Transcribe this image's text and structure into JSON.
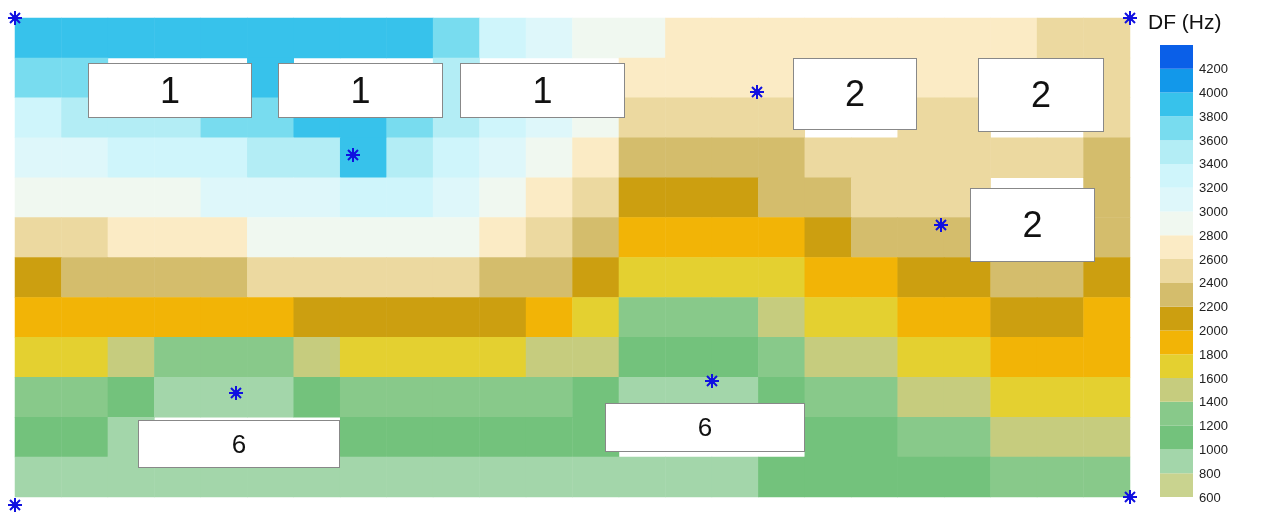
{
  "chart_data": {
    "type": "heatmap",
    "clabel": "DF (Hz)",
    "tick_labels": false,
    "categories": [
      null,
      null,
      null,
      null,
      null,
      null,
      null,
      null,
      null,
      null,
      null,
      null,
      null,
      null,
      null,
      null,
      null,
      null,
      null,
      null,
      null,
      null,
      null,
      null
    ],
    "y_categories": [
      null,
      null,
      null,
      null,
      null,
      null,
      null,
      null,
      null,
      null,
      null,
      null
    ],
    "cells": [
      [
        3900,
        3900,
        3900,
        3900,
        3900,
        3900,
        3900,
        3900,
        3900,
        3700,
        3300,
        3100,
        2900,
        2900,
        2700,
        2700,
        2700,
        2700,
        2700,
        2700,
        2700,
        2700,
        2500,
        2500
      ],
      [
        3700,
        3700,
        null,
        null,
        null,
        3900,
        null,
        null,
        null,
        3500,
        null,
        null,
        null,
        2700,
        2700,
        2700,
        2700,
        null,
        null,
        2700,
        2700,
        null,
        null,
        2500
      ],
      [
        3300,
        3500,
        3500,
        3500,
        3700,
        3700,
        3900,
        3900,
        3700,
        3500,
        3300,
        3100,
        2900,
        2500,
        2500,
        2500,
        2500,
        null,
        null,
        2500,
        2500,
        null,
        null,
        2500
      ],
      [
        3100,
        3100,
        3300,
        3300,
        3300,
        3500,
        3500,
        3900,
        3500,
        3300,
        3100,
        2900,
        2700,
        2300,
        2300,
        2300,
        2300,
        2500,
        2500,
        2500,
        2500,
        2500,
        2500,
        2300
      ],
      [
        2900,
        2900,
        2900,
        2900,
        3100,
        3100,
        3100,
        3300,
        3300,
        3100,
        2900,
        2700,
        2500,
        2100,
        2100,
        2100,
        2300,
        2300,
        2500,
        2500,
        2500,
        null,
        null,
        2300
      ],
      [
        2500,
        2500,
        2700,
        2700,
        2700,
        2900,
        2900,
        2900,
        2900,
        2900,
        2700,
        2500,
        2300,
        1900,
        1900,
        1900,
        1900,
        2100,
        2300,
        2300,
        2300,
        null,
        null,
        2300
      ],
      [
        2100,
        2300,
        2300,
        2300,
        2300,
        2500,
        2500,
        2500,
        2500,
        2500,
        2300,
        2300,
        2100,
        1700,
        1700,
        1700,
        1700,
        1900,
        1900,
        2100,
        2100,
        2300,
        2300,
        2100
      ],
      [
        1900,
        1900,
        1900,
        1900,
        1900,
        1900,
        2100,
        2100,
        2100,
        2100,
        2100,
        1900,
        1700,
        1300,
        1300,
        1300,
        1500,
        1700,
        1700,
        1900,
        1900,
        2100,
        2100,
        1900
      ],
      [
        1700,
        1700,
        1500,
        1300,
        1300,
        1300,
        1500,
        1700,
        1700,
        1700,
        1700,
        1500,
        1500,
        1100,
        1100,
        1100,
        1300,
        1500,
        1500,
        1700,
        1700,
        1900,
        1900,
        1900
      ],
      [
        1300,
        1300,
        1100,
        900,
        900,
        900,
        1100,
        1300,
        1300,
        1300,
        1300,
        1300,
        1100,
        900,
        900,
        900,
        1100,
        1300,
        1300,
        1500,
        1500,
        1700,
        1700,
        1700
      ],
      [
        1100,
        1100,
        900,
        null,
        null,
        null,
        null,
        1100,
        1100,
        1100,
        1100,
        1100,
        1100,
        null,
        null,
        null,
        null,
        1100,
        1100,
        1300,
        1300,
        1500,
        1500,
        1500
      ],
      [
        900,
        900,
        900,
        900,
        900,
        900,
        900,
        900,
        900,
        900,
        900,
        900,
        900,
        900,
        900,
        900,
        1100,
        1100,
        1100,
        1100,
        1100,
        1300,
        1300,
        1300
      ]
    ],
    "clim": [
      600,
      4400
    ],
    "cticks": [
      600,
      800,
      1000,
      1200,
      1400,
      1600,
      1800,
      2000,
      2200,
      2400,
      2600,
      2800,
      3000,
      3200,
      3400,
      3600,
      3800,
      4000,
      4200
    ],
    "colors": [
      "#c9d38f",
      "#a3d6aa",
      "#73c27c",
      "#88c98a",
      "#c6cc7e",
      "#e4d030",
      "#f2b406",
      "#cc9f10",
      "#d4bd6c",
      "#ecd9a0",
      "#fbebc5",
      "#f0f8f0",
      "#def7fa",
      "#cff5fb",
      "#b3edf5",
      "#78dcef",
      "#37c2eb",
      "#1298ea",
      "#0a5fe8"
    ],
    "annotations": [
      "1",
      "1",
      "1",
      "2",
      "2",
      "2",
      "6",
      "6"
    ]
  }
}
